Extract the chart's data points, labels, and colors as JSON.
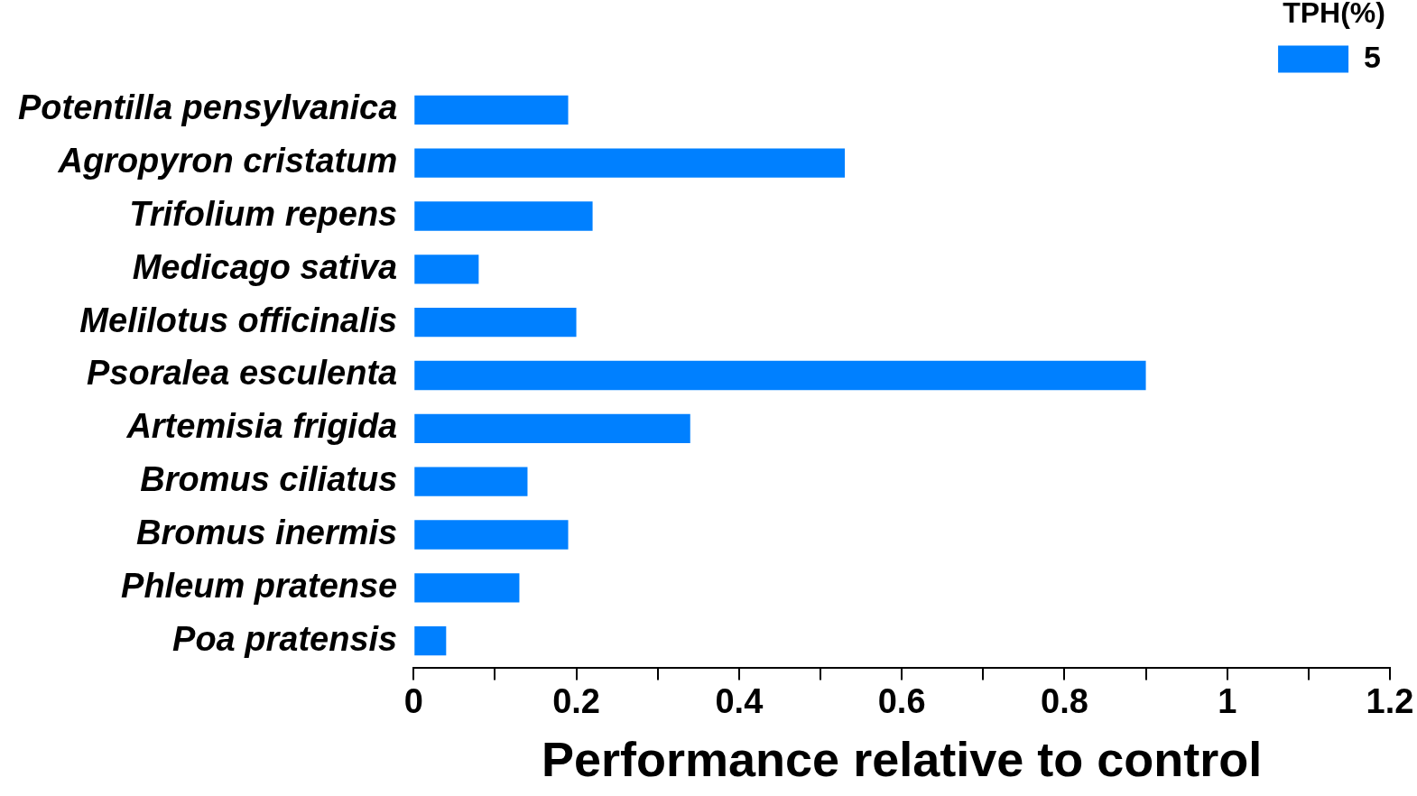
{
  "chart_data": {
    "type": "bar",
    "orientation": "horizontal",
    "xlabel": "Performance relative to control",
    "legend_title": "TPH(%)",
    "legend": "top right",
    "categories": [
      "Potentilla pensylvanica",
      "Agropyron cristatum",
      "Trifolium repens",
      "Medicago sativa",
      "Melilotus officinalis",
      "Psoralea esculenta",
      "Artemisia frigida",
      "Bromus ciliatus",
      "Bromus inermis",
      "Phleum pratense",
      "Poa pratensis"
    ],
    "series": [
      {
        "name": "5",
        "color": "#0080ff",
        "values": [
          0.19,
          0.53,
          0.22,
          0.08,
          0.2,
          0.9,
          0.34,
          0.14,
          0.19,
          0.13,
          0.04
        ]
      }
    ],
    "xlim": [
      0,
      1.2
    ],
    "xticks": [
      0,
      {
        "value": 0.1,
        "label": null
      },
      {
        "value": 0.2,
        "label": "0.2"
      },
      {
        "value": 0.3,
        "label": null
      },
      {
        "value": 0.4,
        "label": "0.4"
      },
      {
        "value": 0.5,
        "label": null
      },
      {
        "value": 0.6,
        "label": "0.6"
      },
      {
        "value": 0.7,
        "label": null
      },
      {
        "value": 0.8,
        "label": "0.8"
      },
      {
        "value": 0.9,
        "label": null
      },
      1,
      {
        "value": 1.1,
        "label": null
      },
      {
        "value": 1.2,
        "label": "1.2"
      }
    ]
  }
}
